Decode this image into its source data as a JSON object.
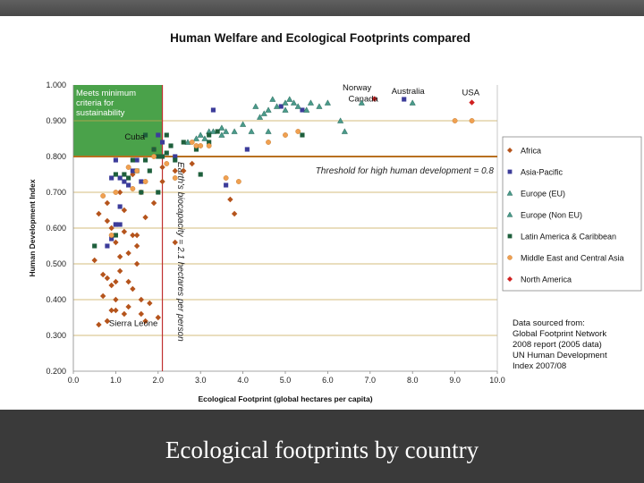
{
  "caption": "Ecological footprints by country",
  "colors": {
    "Africa": "#b5541c",
    "Asia-Pacific": "#3c3c9a",
    "Europe (EU)": "#4a9a8a",
    "Europe (Non EU)": "#4a9a8a",
    "Latin America & Caribbean": "#1e5f3c",
    "Middle East and Central Asia": "#f0a050",
    "North America": "#d02020",
    "threshold_line": "#b87020",
    "biocapacity_line": "#c03030",
    "sustainable_zone": "#3a9a3a"
  },
  "chart_data": {
    "type": "scatter",
    "title": "Human Welfare and Ecological Footprints compared",
    "xlabel": "Ecological Footprint (global hectares per capita)",
    "ylabel": "Human Development Index",
    "xlim": [
      0,
      10
    ],
    "ylim": [
      0.2,
      1.0
    ],
    "xticks": [
      "0.0",
      "1.0",
      "2.0",
      "3.0",
      "4.0",
      "5.0",
      "6.0",
      "7.0",
      "8.0",
      "9.0",
      "10.0"
    ],
    "yticks": [
      "0.200",
      "0.300",
      "0.400",
      "0.500",
      "0.600",
      "0.700",
      "0.800",
      "0.900",
      "1.000"
    ],
    "grid": "horizontal",
    "legend_position": "right",
    "annotations": {
      "zone": "Meets minimum criteria for sustainability",
      "threshold": "Threshold for high human development = 0.8",
      "biocapacity": "Earth's biocapacity = 2.1 hectares per person",
      "source": [
        "Data sourced from:",
        "Global Footprint Network",
        "2008 report (2005 data)",
        "UN Human Development",
        "Index 2007/08"
      ]
    },
    "thresholds": {
      "hdi": 0.8,
      "biocapacity": 2.1
    },
    "point_labels": [
      {
        "text": "Norway",
        "x": 6.9,
        "y": 0.968
      },
      {
        "text": "Canada",
        "x": 7.1,
        "y": 0.961
      },
      {
        "text": "Australia",
        "x": 7.8,
        "y": 0.962
      },
      {
        "text": "USA",
        "x": 9.4,
        "y": 0.951
      },
      {
        "text": "Cuba",
        "x": 1.8,
        "y": 0.855
      },
      {
        "text": "Sierra Leone",
        "x": 0.8,
        "y": 0.336
      }
    ],
    "series": [
      {
        "name": "Africa",
        "marker": "diamond",
        "points": [
          [
            0.5,
            0.51
          ],
          [
            0.6,
            0.33
          ],
          [
            0.7,
            0.41
          ],
          [
            0.8,
            0.46
          ],
          [
            0.8,
            0.34
          ],
          [
            0.9,
            0.37
          ],
          [
            0.9,
            0.44
          ],
          [
            1.0,
            0.4
          ],
          [
            1.0,
            0.56
          ],
          [
            1.1,
            0.52
          ],
          [
            1.1,
            0.48
          ],
          [
            1.2,
            0.59
          ],
          [
            1.3,
            0.53
          ],
          [
            1.3,
            0.45
          ],
          [
            1.4,
            0.43
          ],
          [
            1.4,
            0.58
          ],
          [
            1.5,
            0.5
          ],
          [
            1.5,
            0.55
          ],
          [
            1.6,
            0.4
          ],
          [
            1.6,
            0.36
          ],
          [
            1.7,
            0.63
          ],
          [
            1.8,
            0.39
          ],
          [
            1.9,
            0.67
          ],
          [
            2.0,
            0.35
          ],
          [
            1.2,
            0.65
          ],
          [
            1.1,
            0.7
          ],
          [
            0.9,
            0.6
          ],
          [
            0.8,
            0.62
          ],
          [
            1.0,
            0.45
          ],
          [
            1.3,
            0.38
          ],
          [
            0.7,
            0.47
          ],
          [
            1.2,
            0.36
          ],
          [
            1.6,
            0.7
          ],
          [
            1.9,
            0.82
          ],
          [
            2.1,
            0.77
          ],
          [
            2.4,
            0.76
          ],
          [
            2.6,
            0.76
          ],
          [
            2.8,
            0.78
          ],
          [
            3.7,
            0.68
          ],
          [
            3.8,
            0.64
          ],
          [
            1.0,
            0.37
          ],
          [
            0.6,
            0.64
          ],
          [
            1.5,
            0.58
          ],
          [
            0.8,
            0.67
          ],
          [
            1.7,
            0.34
          ],
          [
            2.1,
            0.73
          ],
          [
            2.4,
            0.56
          ],
          [
            1.4,
            0.75
          ],
          [
            0.8,
            0.34
          ]
        ]
      },
      {
        "name": "Asia-Pacific",
        "marker": "square",
        "points": [
          [
            0.8,
            0.55
          ],
          [
            0.9,
            0.57
          ],
          [
            1.0,
            0.61
          ],
          [
            0.9,
            0.74
          ],
          [
            1.1,
            0.61
          ],
          [
            1.2,
            0.73
          ],
          [
            1.3,
            0.72
          ],
          [
            1.4,
            0.76
          ],
          [
            1.5,
            0.79
          ],
          [
            1.1,
            0.66
          ],
          [
            1.6,
            0.73
          ],
          [
            2.1,
            0.84
          ],
          [
            2.4,
            0.8
          ],
          [
            3.6,
            0.72
          ],
          [
            4.1,
            0.82
          ],
          [
            4.9,
            0.94
          ],
          [
            5.4,
            0.93
          ],
          [
            3.3,
            0.93
          ],
          [
            2.0,
            0.86
          ],
          [
            7.8,
            0.96
          ],
          [
            1.0,
            0.79
          ],
          [
            1.1,
            0.74
          ],
          [
            1.0,
            0.61
          ]
        ]
      },
      {
        "name": "Europe (EU)",
        "marker": "triangle",
        "points": [
          [
            3.8,
            0.87
          ],
          [
            4.0,
            0.89
          ],
          [
            4.4,
            0.91
          ],
          [
            4.6,
            0.93
          ],
          [
            4.8,
            0.94
          ],
          [
            5.0,
            0.95
          ],
          [
            5.3,
            0.94
          ],
          [
            5.6,
            0.95
          ],
          [
            5.8,
            0.94
          ],
          [
            6.0,
            0.95
          ],
          [
            6.3,
            0.9
          ],
          [
            4.3,
            0.94
          ],
          [
            4.5,
            0.92
          ],
          [
            5.1,
            0.96
          ],
          [
            3.2,
            0.87
          ],
          [
            3.5,
            0.86
          ],
          [
            4.2,
            0.87
          ],
          [
            5.0,
            0.93
          ],
          [
            5.2,
            0.95
          ],
          [
            4.7,
            0.96
          ],
          [
            8.0,
            0.95
          ],
          [
            5.5,
            0.93
          ],
          [
            6.8,
            0.95
          ]
        ]
      },
      {
        "name": "Europe (Non EU)",
        "marker": "triangle",
        "points": [
          [
            2.7,
            0.84
          ],
          [
            3.1,
            0.85
          ],
          [
            3.3,
            0.87
          ],
          [
            3.6,
            0.87
          ],
          [
            4.6,
            0.87
          ],
          [
            2.9,
            0.85
          ],
          [
            6.4,
            0.87
          ],
          [
            3.5,
            0.88
          ],
          [
            3.0,
            0.86
          ]
        ]
      },
      {
        "name": "Latin America & Caribbean",
        "marker": "square",
        "points": [
          [
            0.5,
            0.55
          ],
          [
            1.0,
            0.75
          ],
          [
            1.3,
            0.74
          ],
          [
            1.4,
            0.79
          ],
          [
            1.5,
            0.76
          ],
          [
            1.6,
            0.7
          ],
          [
            1.7,
            0.79
          ],
          [
            1.8,
            0.76
          ],
          [
            1.9,
            0.82
          ],
          [
            2.0,
            0.8
          ],
          [
            2.1,
            0.8
          ],
          [
            2.2,
            0.81
          ],
          [
            2.3,
            0.83
          ],
          [
            2.4,
            0.79
          ],
          [
            2.6,
            0.84
          ],
          [
            2.9,
            0.82
          ],
          [
            3.2,
            0.84
          ],
          [
            3.0,
            0.75
          ],
          [
            3.4,
            0.87
          ],
          [
            2.2,
            0.86
          ],
          [
            2.0,
            0.7
          ],
          [
            3.2,
            0.86
          ],
          [
            5.4,
            0.86
          ],
          [
            1.7,
            0.86
          ],
          [
            1.2,
            0.75
          ],
          [
            1.0,
            0.58
          ]
        ]
      },
      {
        "name": "Middle East and Central Asia",
        "marker": "circle",
        "points": [
          [
            0.7,
            0.69
          ],
          [
            0.9,
            0.58
          ],
          [
            1.3,
            0.77
          ],
          [
            1.4,
            0.71
          ],
          [
            1.5,
            0.76
          ],
          [
            1.7,
            0.73
          ],
          [
            2.2,
            0.78
          ],
          [
            2.4,
            0.74
          ],
          [
            2.9,
            0.83
          ],
          [
            3.0,
            0.83
          ],
          [
            3.2,
            0.83
          ],
          [
            3.6,
            0.74
          ],
          [
            3.9,
            0.73
          ],
          [
            5.0,
            0.86
          ],
          [
            5.3,
            0.87
          ],
          [
            9.0,
            0.9
          ],
          [
            9.4,
            0.9
          ],
          [
            4.6,
            0.84
          ],
          [
            1.0,
            0.7
          ],
          [
            1.9,
            0.8
          ],
          [
            2.8,
            0.84
          ]
        ]
      },
      {
        "name": "North America",
        "marker": "diamond",
        "points": [
          [
            7.1,
            0.961
          ],
          [
            9.4,
            0.951
          ]
        ]
      }
    ]
  }
}
